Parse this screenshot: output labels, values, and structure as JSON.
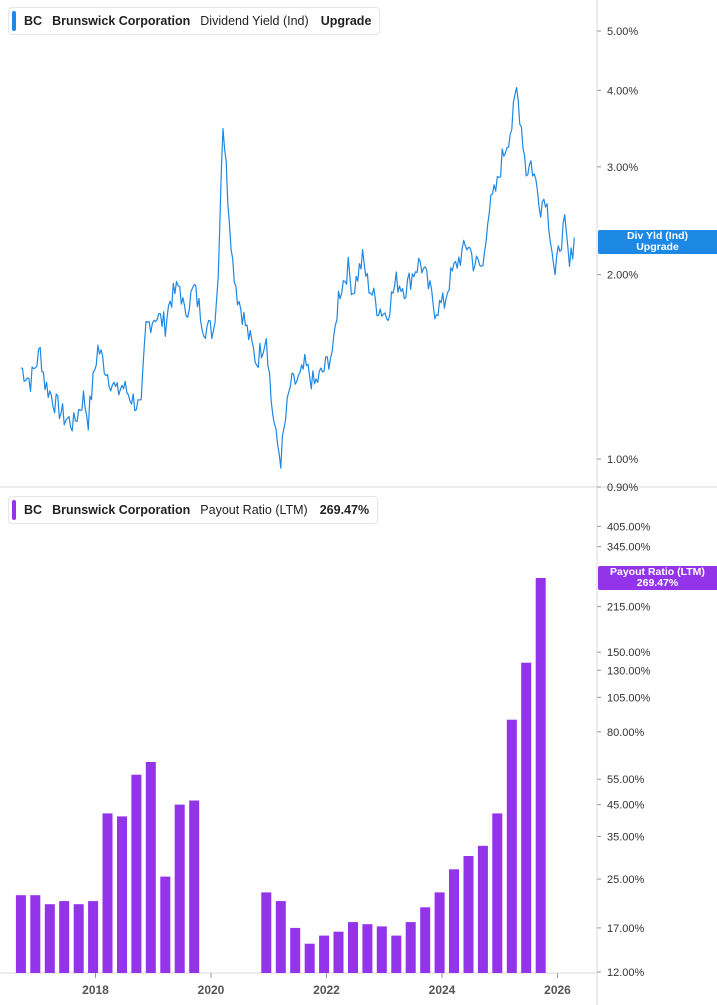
{
  "colors": {
    "yield_line": "#1e88e5",
    "payout_bar": "#9333ea",
    "axis": "#d9d9d9",
    "text": "#333333"
  },
  "top_legend": {
    "ticker": "BC",
    "company": "Brunswick Corporation",
    "metric": "Dividend Yield (Ind)",
    "value": "Upgrade"
  },
  "bottom_legend": {
    "ticker": "BC",
    "company": "Brunswick Corporation",
    "metric": "Payout Ratio (LTM)",
    "value": "269.47%"
  },
  "top_badge": {
    "line1": "Div Yld (Ind)",
    "line2": "Upgrade"
  },
  "bottom_badge": {
    "line1": "Payout Ratio (LTM)",
    "line2": "269.47%"
  },
  "x_axis": {
    "ticks": [
      "2018",
      "2020",
      "2022",
      "2024",
      "2026"
    ]
  },
  "chart_data": [
    {
      "type": "line",
      "title": "BC Brunswick Corporation Dividend Yield (Ind)",
      "y_scale": "log",
      "ylim": [
        0.9,
        5.7
      ],
      "y_ticks": [
        {
          "value": 5.0,
          "label": "5.00%"
        },
        {
          "value": 4.0,
          "label": "4.00%"
        },
        {
          "value": 3.0,
          "label": "3.00%"
        },
        {
          "value": 2.0,
          "label": "2.00%"
        },
        {
          "value": 1.0,
          "label": "1.00%"
        },
        {
          "value": 0.9,
          "label": "0.90%"
        }
      ],
      "series": [
        {
          "name": "Dividend Yield (Ind)",
          "points": [
            [
              "2016-09",
              1.41
            ],
            [
              "2016-11",
              1.34
            ],
            [
              "2017-01",
              1.5
            ],
            [
              "2017-02",
              1.33
            ],
            [
              "2017-04",
              1.24
            ],
            [
              "2017-06",
              1.17
            ],
            [
              "2017-08",
              1.14
            ],
            [
              "2017-10",
              1.26
            ],
            [
              "2017-11",
              1.16
            ],
            [
              "2018-01",
              1.52
            ],
            [
              "2018-03",
              1.38
            ],
            [
              "2018-05",
              1.28
            ],
            [
              "2018-06",
              1.32
            ],
            [
              "2018-08",
              1.26
            ],
            [
              "2018-10",
              1.2
            ],
            [
              "2018-11",
              1.64
            ],
            [
              "2019-01",
              1.72
            ],
            [
              "2019-03",
              1.66
            ],
            [
              "2019-04",
              1.82
            ],
            [
              "2019-06",
              1.92
            ],
            [
              "2019-07",
              1.72
            ],
            [
              "2019-09",
              1.9
            ],
            [
              "2019-11",
              1.65
            ],
            [
              "2020-01",
              1.62
            ],
            [
              "2020-02",
              1.98
            ],
            [
              "2020-03",
              3.55
            ],
            [
              "2020-04",
              2.7
            ],
            [
              "2020-05",
              2.1
            ],
            [
              "2020-06",
              1.85
            ],
            [
              "2020-08",
              1.62
            ],
            [
              "2020-10",
              1.44
            ],
            [
              "2020-12",
              1.6
            ],
            [
              "2021-01",
              1.25
            ],
            [
              "2021-02",
              1.08
            ],
            [
              "2021-03",
              1.0
            ],
            [
              "2021-05",
              1.32
            ],
            [
              "2021-07",
              1.35
            ],
            [
              "2021-08",
              1.42
            ],
            [
              "2021-10",
              1.32
            ],
            [
              "2021-12",
              1.4
            ],
            [
              "2022-02",
              1.52
            ],
            [
              "2022-03",
              1.85
            ],
            [
              "2022-05",
              2.05
            ],
            [
              "2022-06",
              1.88
            ],
            [
              "2022-08",
              2.12
            ],
            [
              "2022-09",
              1.95
            ],
            [
              "2022-11",
              1.78
            ],
            [
              "2023-01",
              1.72
            ],
            [
              "2023-03",
              1.95
            ],
            [
              "2023-05",
              1.9
            ],
            [
              "2023-07",
              2.05
            ],
            [
              "2023-08",
              2.1
            ],
            [
              "2023-10",
              1.88
            ],
            [
              "2023-11",
              1.76
            ],
            [
              "2024-01",
              1.8
            ],
            [
              "2024-02",
              1.95
            ],
            [
              "2024-04",
              2.12
            ],
            [
              "2024-06",
              2.25
            ],
            [
              "2024-07",
              2.1
            ],
            [
              "2024-09",
              2.05
            ],
            [
              "2024-10",
              2.5
            ],
            [
              "2024-12",
              2.8
            ],
            [
              "2025-01",
              3.1
            ],
            [
              "2025-03",
              3.5
            ],
            [
              "2025-04",
              4.0
            ],
            [
              "2025-05",
              3.5
            ],
            [
              "2025-06",
              2.95
            ],
            [
              "2025-07",
              3.05
            ],
            [
              "2025-09",
              2.6
            ],
            [
              "2025-10",
              2.7
            ],
            [
              "2025-11",
              2.35
            ],
            [
              "2025-12",
              1.97
            ],
            [
              "2026-01",
              2.25
            ],
            [
              "2026-02",
              2.4
            ],
            [
              "2026-03",
              2.05
            ],
            [
              "2026-04",
              2.3
            ]
          ]
        }
      ]
    },
    {
      "type": "bar",
      "title": "BC Brunswick Corporation Payout Ratio (LTM)",
      "y_scale": "log",
      "ylim": [
        12,
        480
      ],
      "y_ticks": [
        {
          "value": 405,
          "label": "405.00%"
        },
        {
          "value": 345,
          "label": "345.00%"
        },
        {
          "value": 215,
          "label": "215.00%"
        },
        {
          "value": 150,
          "label": "150.00%"
        },
        {
          "value": 130,
          "label": "130.00%"
        },
        {
          "value": 105,
          "label": "105.00%"
        },
        {
          "value": 80,
          "label": "80.00%"
        },
        {
          "value": 55,
          "label": "55.00%"
        },
        {
          "value": 45,
          "label": "45.00%"
        },
        {
          "value": 35,
          "label": "35.00%"
        },
        {
          "value": 25,
          "label": "25.00%"
        },
        {
          "value": 17,
          "label": "17.00%"
        },
        {
          "value": 12,
          "label": "12.00%"
        }
      ],
      "series": [
        {
          "name": "Payout Ratio (LTM)",
          "bars": [
            [
              "2016-09",
              22
            ],
            [
              "2016-12",
              22
            ],
            [
              "2017-03",
              20.5
            ],
            [
              "2017-06",
              21
            ],
            [
              "2017-09",
              20.5
            ],
            [
              "2017-12",
              21
            ],
            [
              "2018-03",
              42
            ],
            [
              "2018-06",
              41
            ],
            [
              "2018-09",
              57
            ],
            [
              "2018-12",
              63
            ],
            [
              "2019-03",
              25.5
            ],
            [
              "2019-06",
              45
            ],
            [
              "2019-09",
              46.5
            ],
            [
              "2020-12",
              22.5
            ],
            [
              "2021-03",
              21
            ],
            [
              "2021-06",
              17
            ],
            [
              "2021-09",
              15
            ],
            [
              "2021-12",
              16
            ],
            [
              "2022-03",
              16.5
            ],
            [
              "2022-06",
              17.8
            ],
            [
              "2022-09",
              17.5
            ],
            [
              "2022-12",
              17.2
            ],
            [
              "2023-03",
              16
            ],
            [
              "2023-06",
              17.8
            ],
            [
              "2023-09",
              20
            ],
            [
              "2023-12",
              22.5
            ],
            [
              "2024-03",
              27
            ],
            [
              "2024-06",
              30
            ],
            [
              "2024-09",
              32.5
            ],
            [
              "2024-12",
              42
            ],
            [
              "2025-03",
              88
            ],
            [
              "2025-06",
              138
            ],
            [
              "2025-09",
              269.47
            ]
          ]
        }
      ]
    }
  ]
}
